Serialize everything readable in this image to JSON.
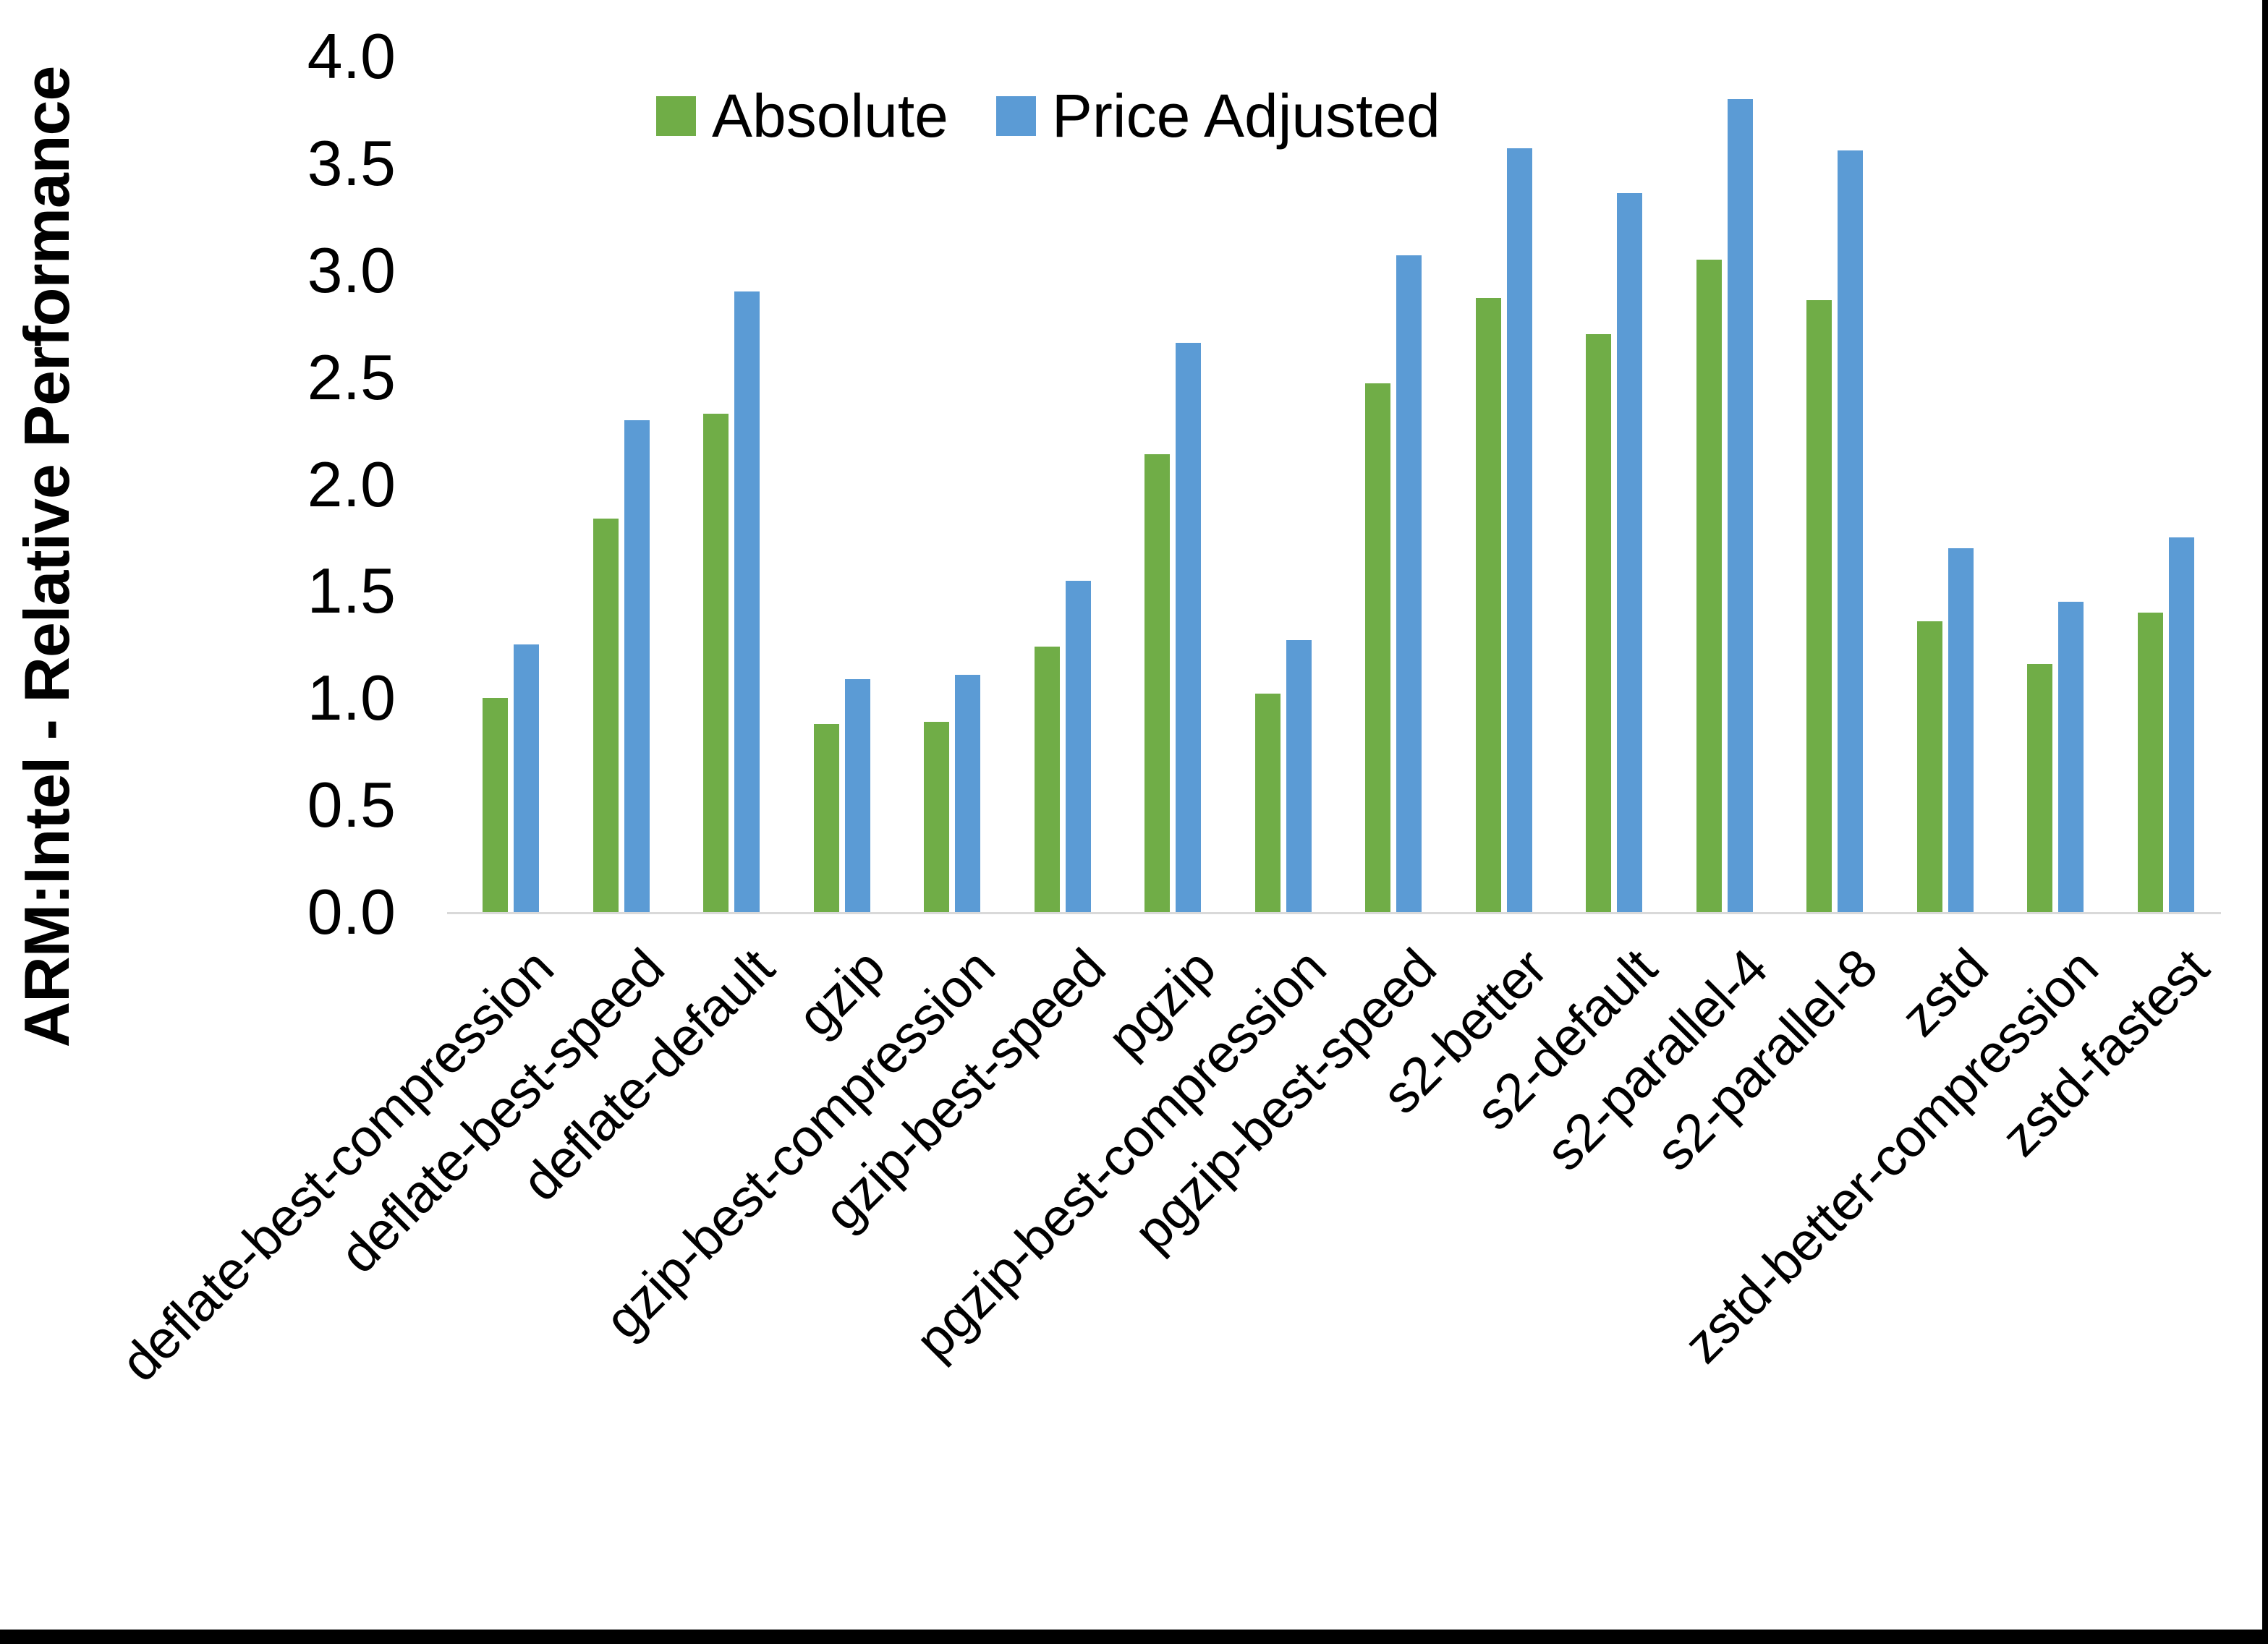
{
  "chart_data": {
    "type": "bar",
    "title": "",
    "xlabel": "",
    "ylabel": "ARM:Intel - Relative Performance",
    "ylim": [
      0.0,
      4.0
    ],
    "yticks": [
      "0.0",
      "0.5",
      "1.0",
      "1.5",
      "2.0",
      "2.5",
      "3.0",
      "3.5",
      "4.0"
    ],
    "grid": false,
    "legend_position": "top",
    "categories": [
      "deflate-best-compression",
      "deflate-best-speed",
      "deflate-default",
      "gzip",
      "gzip-best-compression",
      "gzip-best-speed",
      "pgzip",
      "pgzip-best-compression",
      "pgzip-best-speed",
      "s2-better",
      "s2-default",
      "s2-parallel-4",
      "s2-parallel-8",
      "zstd",
      "zstd-better-compression",
      "zstd-fastest"
    ],
    "series": [
      {
        "name": "Absolute",
        "color": "#70AD47",
        "values": [
          1.0,
          1.84,
          2.33,
          0.88,
          0.89,
          1.24,
          2.14,
          1.02,
          2.47,
          2.87,
          2.7,
          3.05,
          2.86,
          1.36,
          1.16,
          1.4
        ]
      },
      {
        "name": "Price Adjusted",
        "color": "#5B9BD5",
        "values": [
          1.25,
          2.3,
          2.9,
          1.09,
          1.11,
          1.55,
          2.66,
          1.27,
          3.07,
          3.57,
          3.36,
          3.8,
          3.56,
          1.7,
          1.45,
          1.75
        ]
      }
    ],
    "axis_line_color": "#D9D9D9",
    "text_color": "#000000",
    "frame_color": "#000000"
  }
}
